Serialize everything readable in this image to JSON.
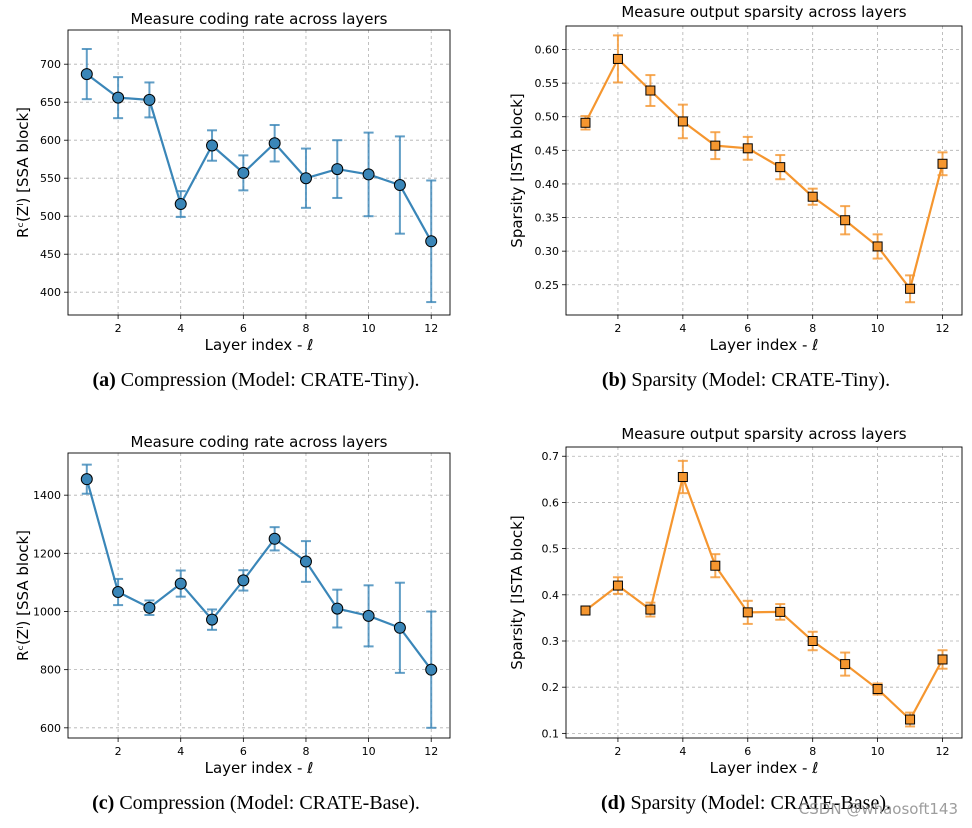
{
  "chart_data": [
    {
      "type": "line",
      "title": "Measure coding rate across layers",
      "xlabel": "Layer index - ℓ",
      "ylabel": "Rᶜ(Zˡ) [SSA block]",
      "x": [
        1,
        2,
        3,
        4,
        5,
        6,
        7,
        8,
        9,
        10,
        11,
        12
      ],
      "xticks": [
        2,
        4,
        6,
        8,
        10,
        12
      ],
      "xlim": [
        0.4,
        12.6
      ],
      "ylim": [
        370,
        745
      ],
      "yticks": [
        400,
        450,
        500,
        550,
        600,
        650,
        700
      ],
      "series": [
        {
          "name": "SSA block coding rate",
          "color": "#3a86b8",
          "marker": "circle",
          "values": [
            687,
            656,
            653,
            516,
            593,
            557,
            596,
            550,
            562,
            555,
            541,
            467
          ],
          "error": [
            33,
            27,
            23,
            17,
            20,
            23,
            24,
            39,
            38,
            55,
            64,
            80
          ]
        }
      ],
      "caption": {
        "label": "(a)",
        "text": "Compression (Model: ",
        "model": "CRATE",
        "suffix": "-Tiny)."
      }
    },
    {
      "type": "line",
      "title": "Measure output sparsity across layers",
      "xlabel": "Layer index - ℓ",
      "ylabel": "Sparsity [ISTA block]",
      "x": [
        1,
        2,
        3,
        4,
        5,
        6,
        7,
        8,
        9,
        10,
        11,
        12
      ],
      "xticks": [
        2,
        4,
        6,
        8,
        10,
        12
      ],
      "xlim": [
        0.4,
        12.6
      ],
      "ylim": [
        0.205,
        0.635
      ],
      "yticks": [
        0.25,
        0.3,
        0.35,
        0.4,
        0.45,
        0.5,
        0.55,
        0.6
      ],
      "ytick_labels": [
        "0.25",
        "0.30",
        "0.35",
        "0.40",
        "0.45",
        "0.50",
        "0.55",
        "0.60"
      ],
      "series": [
        {
          "name": "ISTA block sparsity",
          "color": "#f5962f",
          "marker": "square",
          "values": [
            0.491,
            0.586,
            0.539,
            0.493,
            0.457,
            0.453,
            0.425,
            0.381,
            0.346,
            0.307,
            0.244,
            0.43
          ],
          "error": [
            0.01,
            0.035,
            0.023,
            0.025,
            0.02,
            0.017,
            0.018,
            0.012,
            0.021,
            0.018,
            0.02,
            0.017
          ]
        }
      ],
      "caption": {
        "label": "(b)",
        "text": "Sparsity (Model: ",
        "model": "CRATE",
        "suffix": "-Tiny)."
      }
    },
    {
      "type": "line",
      "title": "Measure coding rate across layers",
      "xlabel": "Layer index - ℓ",
      "ylabel": "Rᶜ(Zˡ) [SSA block]",
      "x": [
        1,
        2,
        3,
        4,
        5,
        6,
        7,
        8,
        9,
        10,
        11,
        12
      ],
      "xticks": [
        2,
        4,
        6,
        8,
        10,
        12
      ],
      "xlim": [
        0.4,
        12.6
      ],
      "ylim": [
        565,
        1545
      ],
      "yticks": [
        600,
        800,
        1000,
        1200,
        1400
      ],
      "series": [
        {
          "name": "SSA block coding rate",
          "color": "#3a86b8",
          "marker": "circle",
          "values": [
            1455,
            1067,
            1013,
            1096,
            972,
            1107,
            1250,
            1172,
            1010,
            985,
            944,
            800
          ],
          "error": [
            50,
            45,
            25,
            45,
            35,
            35,
            40,
            70,
            65,
            105,
            155,
            200
          ]
        }
      ],
      "caption": {
        "label": "(c)",
        "text": "Compression (Model: ",
        "model": "CRATE",
        "suffix": "-Base)."
      }
    },
    {
      "type": "line",
      "title": "Measure output sparsity across layers",
      "xlabel": "Layer index - ℓ",
      "ylabel": "Sparsity [ISTA block]",
      "x": [
        1,
        2,
        3,
        4,
        5,
        6,
        7,
        8,
        9,
        10,
        11,
        12
      ],
      "xticks": [
        2,
        4,
        6,
        8,
        10,
        12
      ],
      "xlim": [
        0.4,
        12.6
      ],
      "ylim": [
        0.09,
        0.72
      ],
      "yticks": [
        0.1,
        0.2,
        0.3,
        0.4,
        0.5,
        0.6,
        0.7
      ],
      "ytick_labels": [
        "0.1",
        "0.2",
        "0.3",
        "0.4",
        "0.5",
        "0.6",
        "0.7"
      ],
      "series": [
        {
          "name": "ISTA block sparsity",
          "color": "#f5962f",
          "marker": "square",
          "values": [
            0.366,
            0.42,
            0.368,
            0.655,
            0.463,
            0.362,
            0.363,
            0.3,
            0.25,
            0.196,
            0.13,
            0.26
          ],
          "error": [
            0.005,
            0.018,
            0.015,
            0.035,
            0.025,
            0.025,
            0.017,
            0.02,
            0.025,
            0.012,
            0.015,
            0.02
          ]
        }
      ],
      "caption": {
        "label": "(d)",
        "text": "Sparsity (Model: ",
        "model": "CRATE",
        "suffix": "-Base)."
      }
    }
  ],
  "watermark": "CSDN @whaosoft143"
}
